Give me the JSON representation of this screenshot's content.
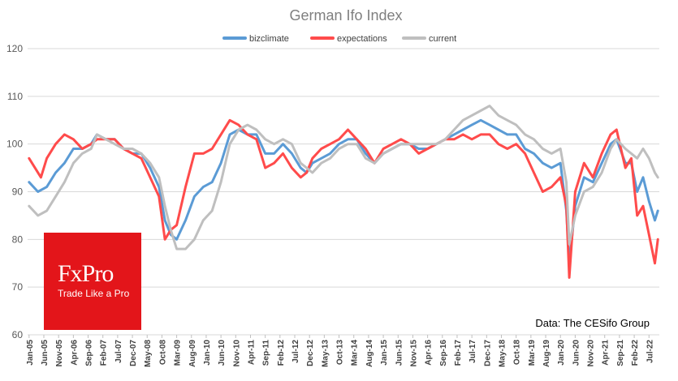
{
  "source_note": "Data: The CESifo Group",
  "logo": {
    "brand": "FxPro",
    "tagline": "Trade Like a Pro"
  },
  "chart_data": {
    "type": "line",
    "title": "German Ifo Index",
    "xlabel": "",
    "ylabel": "",
    "ylim": [
      60,
      120
    ],
    "yticks": [
      60,
      70,
      80,
      90,
      100,
      110,
      120
    ],
    "grid": "horizontal",
    "legend": "top-center",
    "x_start": "Jan-05",
    "x_end": "Oct-22",
    "x_tick_labels": [
      "Jan-05",
      "Jun-05",
      "Nov-05",
      "Apr-06",
      "Sep-06",
      "Feb-07",
      "Jul-07",
      "Dec-07",
      "May-08",
      "Oct-08",
      "Mar-09",
      "Aug-09",
      "Jan-10",
      "Jun-10",
      "Nov-10",
      "Apr-11",
      "Sep-11",
      "Feb-12",
      "Jul-12",
      "Dec-12",
      "May-13",
      "Oct-13",
      "Mar-14",
      "Aug-14",
      "Jan-15",
      "Jun-15",
      "Nov-15",
      "Apr-16",
      "Sep-16",
      "Feb-17",
      "Jul-17",
      "Dec-17",
      "May-18",
      "Oct-18",
      "Mar-19",
      "Aug-19",
      "Jan-20",
      "Jun-20",
      "Nov-20",
      "Apr-21",
      "Sep-21",
      "Feb-22",
      "Jul-22"
    ],
    "series": [
      {
        "name": "bizclimate",
        "color": "#5b9bd5",
        "points": [
          [
            "2005-01",
            92
          ],
          [
            "2005-04",
            90
          ],
          [
            "2005-07",
            91
          ],
          [
            "2005-10",
            94
          ],
          [
            "2006-01",
            96
          ],
          [
            "2006-04",
            99
          ],
          [
            "2006-07",
            99
          ],
          [
            "2006-10",
            100
          ],
          [
            "2006-12",
            102
          ],
          [
            "2007-03",
            101
          ],
          [
            "2007-06",
            101
          ],
          [
            "2007-09",
            99
          ],
          [
            "2007-12",
            98
          ],
          [
            "2008-03",
            98
          ],
          [
            "2008-06",
            95
          ],
          [
            "2008-09",
            91
          ],
          [
            "2008-11",
            84
          ],
          [
            "2009-01",
            81
          ],
          [
            "2009-03",
            80
          ],
          [
            "2009-06",
            84
          ],
          [
            "2009-09",
            89
          ],
          [
            "2009-12",
            91
          ],
          [
            "2010-03",
            92
          ],
          [
            "2010-06",
            96
          ],
          [
            "2010-09",
            102
          ],
          [
            "2010-12",
            103
          ],
          [
            "2011-03",
            102
          ],
          [
            "2011-06",
            102
          ],
          [
            "2011-09",
            98
          ],
          [
            "2011-12",
            98
          ],
          [
            "2012-03",
            100
          ],
          [
            "2012-06",
            98
          ],
          [
            "2012-09",
            95
          ],
          [
            "2012-11",
            94
          ],
          [
            "2013-01",
            96
          ],
          [
            "2013-04",
            97
          ],
          [
            "2013-07",
            98
          ],
          [
            "2013-10",
            100
          ],
          [
            "2014-01",
            101
          ],
          [
            "2014-04",
            101
          ],
          [
            "2014-07",
            98
          ],
          [
            "2014-10",
            96
          ],
          [
            "2015-01",
            98
          ],
          [
            "2015-04",
            99
          ],
          [
            "2015-07",
            100
          ],
          [
            "2015-10",
            100
          ],
          [
            "2016-01",
            99
          ],
          [
            "2016-04",
            99
          ],
          [
            "2016-07",
            100
          ],
          [
            "2016-10",
            101
          ],
          [
            "2017-01",
            102
          ],
          [
            "2017-04",
            103
          ],
          [
            "2017-07",
            104
          ],
          [
            "2017-10",
            105
          ],
          [
            "2018-01",
            104
          ],
          [
            "2018-04",
            103
          ],
          [
            "2018-07",
            102
          ],
          [
            "2018-10",
            102
          ],
          [
            "2019-01",
            99
          ],
          [
            "2019-04",
            98
          ],
          [
            "2019-07",
            96
          ],
          [
            "2019-10",
            95
          ],
          [
            "2020-01",
            96
          ],
          [
            "2020-03",
            86
          ],
          [
            "2020-04",
            75
          ],
          [
            "2020-06",
            87
          ],
          [
            "2020-09",
            93
          ],
          [
            "2020-12",
            92
          ],
          [
            "2021-03",
            96
          ],
          [
            "2021-06",
            100
          ],
          [
            "2021-08",
            101
          ],
          [
            "2021-11",
            96
          ],
          [
            "2022-01",
            96
          ],
          [
            "2022-03",
            90
          ],
          [
            "2022-05",
            93
          ],
          [
            "2022-07",
            88
          ],
          [
            "2022-09",
            84
          ],
          [
            "2022-10",
            86
          ]
        ]
      },
      {
        "name": "expectations",
        "color": "#ff4b4b",
        "points": [
          [
            "2005-01",
            97
          ],
          [
            "2005-03",
            95
          ],
          [
            "2005-05",
            93
          ],
          [
            "2005-07",
            97
          ],
          [
            "2005-10",
            100
          ],
          [
            "2006-01",
            102
          ],
          [
            "2006-04",
            101
          ],
          [
            "2006-07",
            99
          ],
          [
            "2006-10",
            100
          ],
          [
            "2006-12",
            101
          ],
          [
            "2007-03",
            101
          ],
          [
            "2007-06",
            101
          ],
          [
            "2007-09",
            99
          ],
          [
            "2007-12",
            98
          ],
          [
            "2008-03",
            97
          ],
          [
            "2008-06",
            93
          ],
          [
            "2008-09",
            89
          ],
          [
            "2008-11",
            80
          ],
          [
            "2009-01",
            82
          ],
          [
            "2009-03",
            83
          ],
          [
            "2009-06",
            91
          ],
          [
            "2009-09",
            98
          ],
          [
            "2009-12",
            98
          ],
          [
            "2010-03",
            99
          ],
          [
            "2010-06",
            102
          ],
          [
            "2010-09",
            105
          ],
          [
            "2010-12",
            104
          ],
          [
            "2011-03",
            102
          ],
          [
            "2011-06",
            101
          ],
          [
            "2011-09",
            95
          ],
          [
            "2011-12",
            96
          ],
          [
            "2012-03",
            98
          ],
          [
            "2012-06",
            95
          ],
          [
            "2012-09",
            93
          ],
          [
            "2012-11",
            94
          ],
          [
            "2013-01",
            97
          ],
          [
            "2013-04",
            99
          ],
          [
            "2013-07",
            100
          ],
          [
            "2013-10",
            101
          ],
          [
            "2014-01",
            103
          ],
          [
            "2014-04",
            101
          ],
          [
            "2014-07",
            99
          ],
          [
            "2014-10",
            96
          ],
          [
            "2015-01",
            99
          ],
          [
            "2015-04",
            100
          ],
          [
            "2015-07",
            101
          ],
          [
            "2015-10",
            100
          ],
          [
            "2016-01",
            98
          ],
          [
            "2016-04",
            99
          ],
          [
            "2016-07",
            100
          ],
          [
            "2016-10",
            101
          ],
          [
            "2017-01",
            101
          ],
          [
            "2017-04",
            102
          ],
          [
            "2017-07",
            101
          ],
          [
            "2017-10",
            102
          ],
          [
            "2018-01",
            102
          ],
          [
            "2018-04",
            100
          ],
          [
            "2018-07",
            99
          ],
          [
            "2018-10",
            100
          ],
          [
            "2019-01",
            98
          ],
          [
            "2019-04",
            94
          ],
          [
            "2019-07",
            90
          ],
          [
            "2019-10",
            91
          ],
          [
            "2020-01",
            93
          ],
          [
            "2020-03",
            87
          ],
          [
            "2020-04",
            72
          ],
          [
            "2020-06",
            90
          ],
          [
            "2020-09",
            96
          ],
          [
            "2020-12",
            93
          ],
          [
            "2021-03",
            98
          ],
          [
            "2021-06",
            102
          ],
          [
            "2021-08",
            103
          ],
          [
            "2021-11",
            95
          ],
          [
            "2022-01",
            97
          ],
          [
            "2022-03",
            85
          ],
          [
            "2022-05",
            87
          ],
          [
            "2022-07",
            81
          ],
          [
            "2022-09",
            75
          ],
          [
            "2022-10",
            80
          ]
        ]
      },
      {
        "name": "current",
        "color": "#bfbfbf",
        "points": [
          [
            "2005-01",
            87
          ],
          [
            "2005-04",
            85
          ],
          [
            "2005-07",
            86
          ],
          [
            "2005-10",
            89
          ],
          [
            "2006-01",
            92
          ],
          [
            "2006-04",
            96
          ],
          [
            "2006-07",
            98
          ],
          [
            "2006-10",
            99
          ],
          [
            "2006-12",
            102
          ],
          [
            "2007-03",
            101
          ],
          [
            "2007-06",
            100
          ],
          [
            "2007-09",
            99
          ],
          [
            "2007-12",
            99
          ],
          [
            "2008-03",
            98
          ],
          [
            "2008-06",
            96
          ],
          [
            "2008-09",
            93
          ],
          [
            "2008-11",
            87
          ],
          [
            "2009-01",
            82
          ],
          [
            "2009-03",
            78
          ],
          [
            "2009-06",
            78
          ],
          [
            "2009-09",
            80
          ],
          [
            "2009-12",
            84
          ],
          [
            "2010-03",
            86
          ],
          [
            "2010-06",
            92
          ],
          [
            "2010-09",
            100
          ],
          [
            "2010-12",
            103
          ],
          [
            "2011-03",
            104
          ],
          [
            "2011-06",
            103
          ],
          [
            "2011-09",
            101
          ],
          [
            "2011-12",
            100
          ],
          [
            "2012-03",
            101
          ],
          [
            "2012-06",
            100
          ],
          [
            "2012-09",
            96
          ],
          [
            "2012-11",
            95
          ],
          [
            "2013-01",
            94
          ],
          [
            "2013-04",
            96
          ],
          [
            "2013-07",
            97
          ],
          [
            "2013-10",
            99
          ],
          [
            "2014-01",
            100
          ],
          [
            "2014-04",
            100
          ],
          [
            "2014-07",
            97
          ],
          [
            "2014-10",
            96
          ],
          [
            "2015-01",
            98
          ],
          [
            "2015-04",
            99
          ],
          [
            "2015-07",
            100
          ],
          [
            "2015-10",
            100
          ],
          [
            "2016-01",
            100
          ],
          [
            "2016-04",
            100
          ],
          [
            "2016-07",
            100
          ],
          [
            "2016-10",
            101
          ],
          [
            "2017-01",
            103
          ],
          [
            "2017-04",
            105
          ],
          [
            "2017-07",
            106
          ],
          [
            "2017-10",
            107
          ],
          [
            "2018-01",
            108
          ],
          [
            "2018-04",
            106
          ],
          [
            "2018-07",
            105
          ],
          [
            "2018-10",
            104
          ],
          [
            "2019-01",
            102
          ],
          [
            "2019-04",
            101
          ],
          [
            "2019-07",
            99
          ],
          [
            "2019-10",
            98
          ],
          [
            "2020-01",
            99
          ],
          [
            "2020-03",
            92
          ],
          [
            "2020-04",
            79
          ],
          [
            "2020-06",
            85
          ],
          [
            "2020-09",
            90
          ],
          [
            "2020-12",
            91
          ],
          [
            "2021-03",
            94
          ],
          [
            "2021-06",
            99
          ],
          [
            "2021-08",
            101
          ],
          [
            "2021-11",
            99
          ],
          [
            "2022-01",
            98
          ],
          [
            "2022-03",
            97
          ],
          [
            "2022-05",
            99
          ],
          [
            "2022-07",
            97
          ],
          [
            "2022-09",
            94
          ],
          [
            "2022-10",
            93
          ]
        ]
      }
    ]
  }
}
